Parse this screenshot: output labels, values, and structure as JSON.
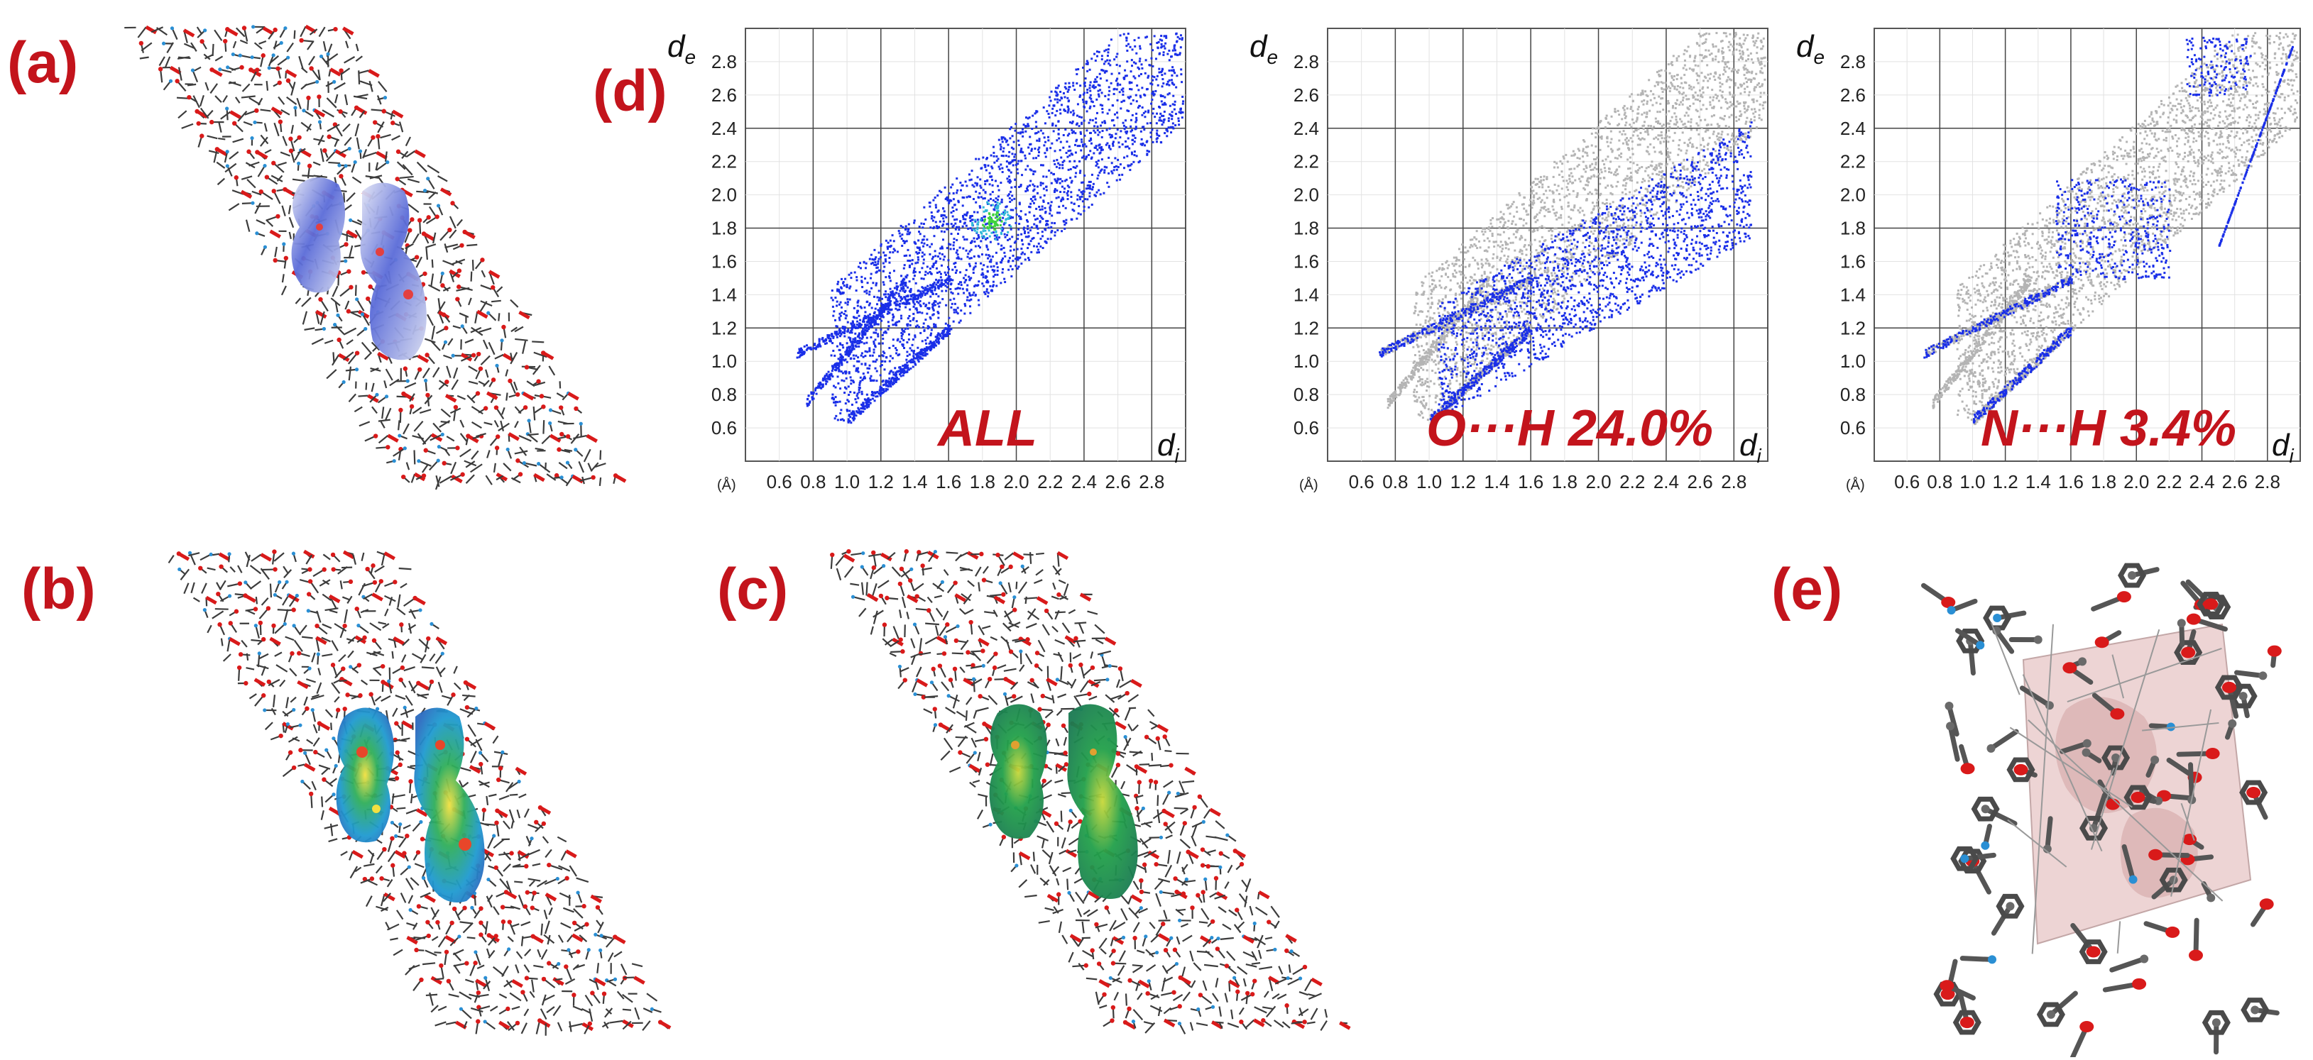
{
  "panels": {
    "a": "(a)",
    "b": "(b)",
    "c": "(c)",
    "d": "(d)",
    "e": "(e)"
  },
  "colors": {
    "label_red": "#c3141c",
    "fingerprint_blue": "#1a2fe8",
    "fingerprint_grey": "#b4b4b4",
    "fingerprint_green": "#3ed23e",
    "atom_oxygen": "#d91a1a",
    "atom_nitrogen": "#2a8fd4",
    "atom_carbon": "#3c3c3c"
  },
  "plot_common": {
    "y_axis_label": "d",
    "y_axis_sub": "e",
    "x_axis_label": "d",
    "x_axis_sub": "i",
    "unit_label": "(Å)",
    "y_ticks": [
      "0.6",
      "0.8",
      "1.0",
      "1.2",
      "1.4",
      "1.6",
      "1.8",
      "2.0",
      "2.2",
      "2.4",
      "2.6",
      "2.8"
    ],
    "x_ticks": [
      "0.6",
      "0.8",
      "1.0",
      "1.2",
      "1.4",
      "1.6",
      "1.8",
      "2.0",
      "2.2",
      "2.4",
      "2.6",
      "2.8"
    ]
  },
  "plots": [
    {
      "caption": "ALL",
      "highlight": "all"
    },
    {
      "caption": "O···H 24.0%",
      "highlight": "oh"
    },
    {
      "caption": "N···H 3.4%",
      "highlight": "nh"
    }
  ]
}
